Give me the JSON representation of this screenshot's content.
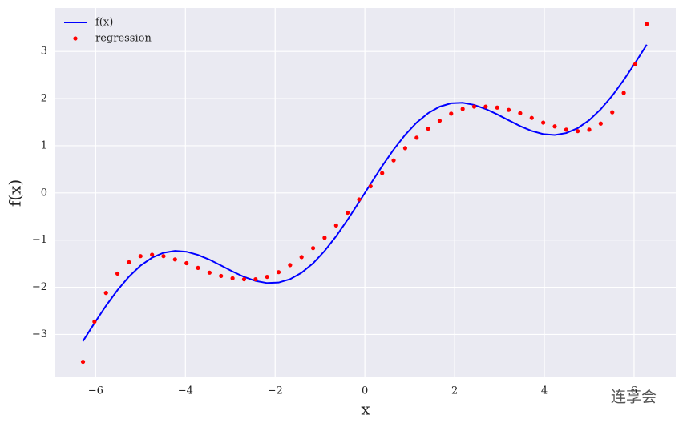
{
  "chart_data": {
    "type": "line",
    "xlabel": "x",
    "ylabel": "f(x)",
    "x": [
      -6.283,
      -6.027,
      -5.77,
      -5.514,
      -5.257,
      -5.001,
      -4.744,
      -4.488,
      -4.232,
      -3.975,
      -3.719,
      -3.462,
      -3.206,
      -2.949,
      -2.693,
      -2.436,
      -2.18,
      -1.923,
      -1.667,
      -1.411,
      -1.154,
      -0.898,
      -0.641,
      -0.385,
      -0.128,
      0.128,
      0.385,
      0.641,
      0.898,
      1.154,
      1.411,
      1.667,
      1.923,
      2.18,
      2.436,
      2.693,
      2.949,
      3.206,
      3.462,
      3.719,
      3.975,
      4.232,
      4.488,
      4.744,
      5.001,
      5.257,
      5.514,
      5.77,
      6.027,
      6.283
    ],
    "series": [
      {
        "name": "f(x)",
        "color": "#0000ff",
        "style": "line",
        "values": [
          -3.142,
          -2.76,
          -2.394,
          -2.061,
          -1.774,
          -1.542,
          -1.373,
          -1.269,
          -1.229,
          -1.247,
          -1.314,
          -1.416,
          -1.539,
          -1.666,
          -1.78,
          -1.866,
          -1.911,
          -1.9,
          -1.829,
          -1.692,
          -1.492,
          -1.231,
          -0.919,
          -0.568,
          -0.192,
          0.192,
          0.568,
          0.919,
          1.231,
          1.492,
          1.692,
          1.829,
          1.9,
          1.911,
          1.866,
          1.78,
          1.666,
          1.539,
          1.416,
          1.314,
          1.247,
          1.229,
          1.269,
          1.373,
          1.542,
          1.774,
          2.061,
          2.394,
          2.76,
          3.142
        ]
      },
      {
        "name": "regression",
        "color": "#ff0000",
        "style": "dots",
        "values": [
          -3.58,
          -2.73,
          -2.12,
          -1.71,
          -1.47,
          -1.34,
          -1.31,
          -1.34,
          -1.41,
          -1.49,
          -1.59,
          -1.69,
          -1.76,
          -1.81,
          -1.83,
          -1.83,
          -1.78,
          -1.68,
          -1.53,
          -1.36,
          -1.17,
          -0.95,
          -0.69,
          -0.42,
          -0.14,
          0.14,
          0.42,
          0.69,
          0.95,
          1.17,
          1.36,
          1.53,
          1.68,
          1.78,
          1.83,
          1.83,
          1.81,
          1.76,
          1.69,
          1.59,
          1.49,
          1.41,
          1.34,
          1.31,
          1.34,
          1.47,
          1.71,
          2.12,
          2.73,
          3.58
        ]
      }
    ],
    "xlim": [
      -6.9,
      6.93
    ],
    "ylim": [
      -3.91,
      3.92
    ],
    "xticks": [
      {
        "value": -6,
        "label": "−6"
      },
      {
        "value": -4,
        "label": "−4"
      },
      {
        "value": -2,
        "label": "−2"
      },
      0,
      2,
      4,
      6
    ],
    "yticks": [
      {
        "value": -3,
        "label": "−3"
      },
      {
        "value": -2,
        "label": "−2"
      },
      {
        "value": -1,
        "label": "−1"
      },
      0,
      1,
      2,
      3
    ],
    "grid": true,
    "legend": "upper left",
    "watermark": "连享会"
  }
}
